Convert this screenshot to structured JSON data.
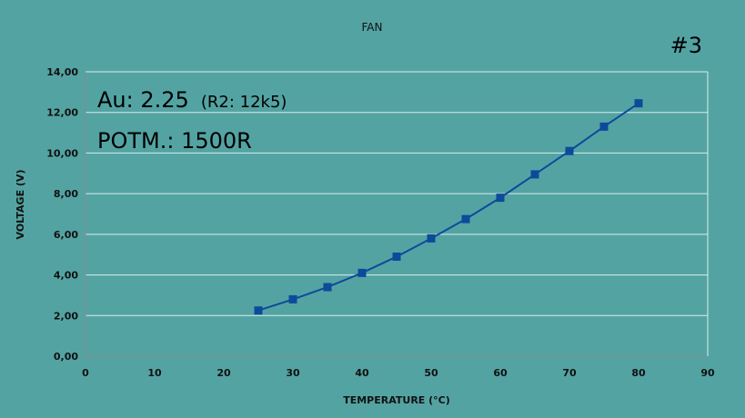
{
  "chart_data": {
    "type": "line",
    "title": "FAN",
    "badge": "#3",
    "xlabel": "TEMPERATURE (°C)",
    "ylabel": "VOLTAGE (V)",
    "xlim": [
      0,
      90
    ],
    "ylim": [
      0,
      14
    ],
    "x_ticks": [
      "0",
      "10",
      "20",
      "30",
      "40",
      "50",
      "60",
      "70",
      "80",
      "90"
    ],
    "y_ticks": [
      "0,00",
      "2,00",
      "4,00",
      "6,00",
      "8,00",
      "10,00",
      "12,00",
      "14,00"
    ],
    "grid": true,
    "series": [
      {
        "x": [
          25,
          30,
          35,
          40,
          45,
          50,
          55,
          60,
          65,
          70,
          75,
          80
        ],
        "y": [
          2.25,
          2.8,
          3.4,
          4.1,
          4.9,
          5.8,
          6.75,
          7.8,
          8.95,
          10.1,
          11.3,
          12.45
        ],
        "color": "#0d4a9a"
      }
    ],
    "annotations": {
      "line1_main": "Au: 2.25",
      "line1_small": "(R2: 12k5)",
      "line2": "POTM.: 1500R"
    },
    "colors": {
      "background": "#54a3a3",
      "gridline": "#d8eeee",
      "series": "#0d4a9a"
    }
  }
}
